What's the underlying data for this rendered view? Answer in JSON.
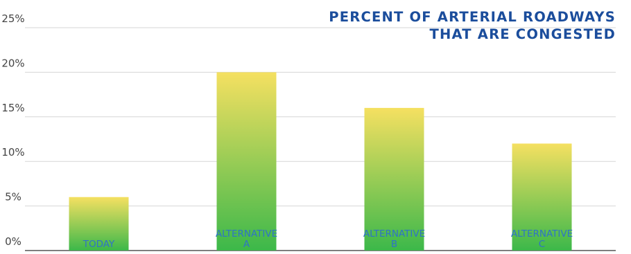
{
  "chart_data": {
    "type": "bar",
    "title_lines": [
      "PERCENT OF ARTERIAL ROADWAYS",
      "THAT ARE CONGESTED"
    ],
    "categories": [
      [
        "TODAY"
      ],
      [
        "ALTERNATIVE",
        "A"
      ],
      [
        "ALTERNATIVE",
        "B"
      ],
      [
        "ALTERNATIVE",
        "C"
      ]
    ],
    "values": [
      6,
      20,
      16,
      12
    ],
    "yticks": [
      "0%",
      "5%",
      "10%",
      "15%",
      "20%",
      "25%"
    ],
    "ylim": [
      0,
      25
    ],
    "grid": true,
    "colors": {
      "bar_top": "#f5e061",
      "bar_bottom": "#3cb84a",
      "grid": "#d6d6d6",
      "axis": "#555555",
      "title": "#1b4d9c",
      "category_label": "#2f73c7"
    }
  }
}
